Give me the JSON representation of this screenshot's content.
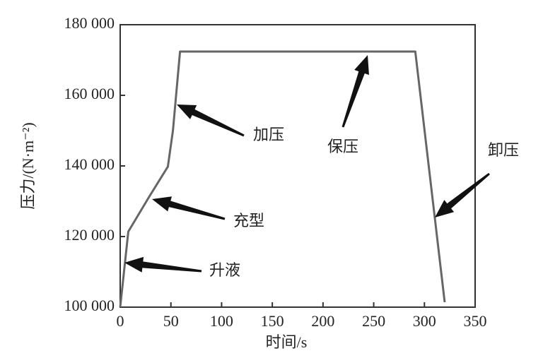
{
  "chart_data": {
    "type": "line",
    "ylabel": "压力/(N·m⁻²)",
    "xlabel": "时间/s",
    "x": [
      0,
      8,
      28,
      47,
      52,
      59,
      291,
      320
    ],
    "series": [
      {
        "name": null,
        "color": "#666666",
        "values": [
          100000,
          121400,
          131000,
          139800,
          150000,
          172400,
          172400,
          101400
        ]
      }
    ],
    "xlim": [
      0,
      350
    ],
    "xticks": [
      0,
      50,
      100,
      150,
      200,
      250,
      300,
      350
    ],
    "ylim": [
      100000,
      180000
    ],
    "yticks": [
      {
        "value": 100000,
        "label": "100 000"
      },
      {
        "value": 120000,
        "label": "120 000"
      },
      {
        "value": 140000,
        "label": "140 000"
      },
      {
        "value": 160000,
        "label": "160 000"
      },
      {
        "value": 180000,
        "label": "180 000"
      }
    ],
    "annotations": [
      "升液",
      "充型",
      "加压",
      "保压",
      "卸压"
    ]
  }
}
